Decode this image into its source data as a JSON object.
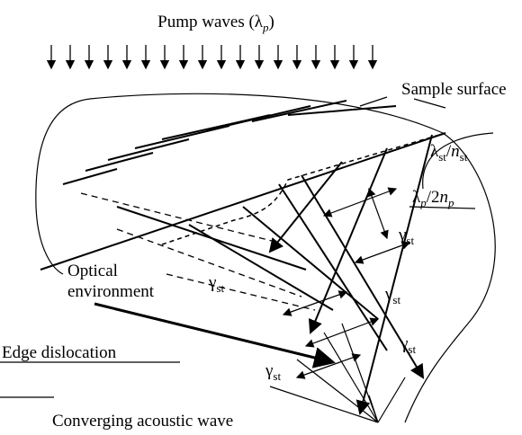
{
  "pump_label": {
    "text": "Pump waves (λ",
    "sub": "p",
    "end": ")"
  },
  "sample_surface": "Sample surface",
  "wavelength_label": {
    "lambda": "λ",
    "sub1": "st",
    "slash": "/",
    "n": "n",
    "sub2": "st"
  },
  "half_pump_label": {
    "lambda": "λ",
    "sub1": "p",
    "mid": "/2",
    "n": "n",
    "sub2": "p"
  },
  "gamma_labels": [
    {
      "symbol": "γ",
      "sub": "st"
    },
    {
      "symbol": "γ",
      "sub": "st"
    },
    {
      "symbol": "γ",
      "sub": "st"
    },
    {
      "symbol": "γ",
      "sub": "st"
    },
    {
      "symbol": "γ",
      "sub": "st"
    }
  ],
  "optical_environment": [
    "Optical",
    "environment"
  ],
  "edge_dislocation": "Edge dislocation",
  "converging_wave": "Converging acoustic wave"
}
